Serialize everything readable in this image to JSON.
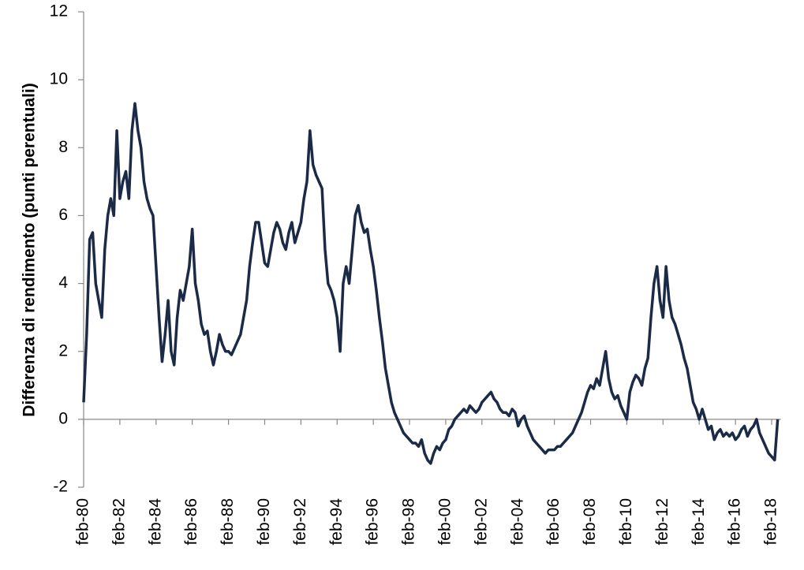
{
  "chart_data": {
    "type": "line",
    "y_label": "Differenza di rendimento (punti perentuali)",
    "color": "#1b2a47",
    "ylim": [
      -2,
      12
    ],
    "yticks": [
      -2,
      0,
      2,
      4,
      6,
      8,
      10,
      12
    ],
    "categories": [
      "feb-80",
      null,
      null,
      null,
      null,
      null,
      null,
      null,
      null,
      null,
      null,
      null,
      "feb-82",
      null,
      null,
      null,
      null,
      null,
      null,
      null,
      null,
      null,
      null,
      null,
      "feb-84",
      null,
      null,
      null,
      null,
      null,
      null,
      null,
      null,
      null,
      null,
      null,
      "feb-86",
      null,
      null,
      null,
      null,
      null,
      null,
      null,
      null,
      null,
      null,
      null,
      "feb-88",
      null,
      null,
      null,
      null,
      null,
      null,
      null,
      null,
      null,
      null,
      null,
      "feb-90",
      null,
      null,
      null,
      null,
      null,
      null,
      null,
      null,
      null,
      null,
      null,
      "feb-92",
      null,
      null,
      null,
      null,
      null,
      null,
      null,
      null,
      null,
      null,
      null,
      "feb-94",
      null,
      null,
      null,
      null,
      null,
      null,
      null,
      null,
      null,
      null,
      null,
      "feb-96",
      null,
      null,
      null,
      null,
      null,
      null,
      null,
      null,
      null,
      null,
      null,
      "feb-98",
      null,
      null,
      null,
      null,
      null,
      null,
      null,
      null,
      null,
      null,
      null,
      "feb-00",
      null,
      null,
      null,
      null,
      null,
      null,
      null,
      null,
      null,
      null,
      null,
      "feb-02",
      null,
      null,
      null,
      null,
      null,
      null,
      null,
      null,
      null,
      null,
      null,
      "feb-04",
      null,
      null,
      null,
      null,
      null,
      null,
      null,
      null,
      null,
      null,
      null,
      "feb-06",
      null,
      null,
      null,
      null,
      null,
      null,
      null,
      null,
      null,
      null,
      null,
      "feb-08",
      null,
      null,
      null,
      null,
      null,
      null,
      null,
      null,
      null,
      null,
      null,
      "feb-10",
      null,
      null,
      null,
      null,
      null,
      null,
      null,
      null,
      null,
      null,
      null,
      "feb-12",
      null,
      null,
      null,
      null,
      null,
      null,
      null,
      null,
      null,
      null,
      null,
      "feb-14",
      null,
      null,
      null,
      null,
      null,
      null,
      null,
      null,
      null,
      null,
      null,
      "feb-16",
      null,
      null,
      null,
      null,
      null,
      null,
      null,
      null,
      null,
      null,
      null,
      "feb-18",
      null,
      null
    ],
    "values": [
      0.5,
      2.5,
      5.3,
      5.5,
      4.0,
      3.5,
      3.0,
      5.0,
      6.0,
      6.5,
      6.0,
      8.5,
      6.5,
      7.0,
      7.3,
      6.5,
      8.5,
      9.3,
      8.5,
      8.0,
      7.0,
      6.5,
      6.2,
      6.0,
      4.5,
      3.0,
      1.7,
      2.5,
      3.5,
      2.0,
      1.6,
      3.0,
      3.8,
      3.5,
      4.0,
      4.5,
      5.6,
      4.0,
      3.5,
      2.8,
      2.5,
      2.6,
      2.0,
      1.6,
      2.0,
      2.5,
      2.2,
      2.0,
      2.0,
      1.9,
      2.1,
      2.3,
      2.5,
      3.0,
      3.5,
      4.5,
      5.2,
      5.8,
      5.8,
      5.2,
      4.6,
      4.5,
      5.0,
      5.5,
      5.8,
      5.6,
      5.2,
      5.0,
      5.5,
      5.8,
      5.2,
      5.5,
      5.8,
      6.5,
      7.0,
      8.5,
      7.5,
      7.2,
      7.0,
      6.8,
      5.0,
      4.0,
      3.8,
      3.5,
      3.0,
      2.0,
      4.0,
      4.5,
      4.0,
      5.0,
      6.0,
      6.3,
      5.8,
      5.5,
      5.6,
      5.0,
      4.5,
      3.8,
      3.0,
      2.3,
      1.5,
      1.0,
      0.5,
      0.2,
      0.0,
      -0.2,
      -0.4,
      -0.5,
      -0.6,
      -0.7,
      -0.7,
      -0.8,
      -0.6,
      -1.0,
      -1.2,
      -1.3,
      -1.0,
      -0.8,
      -0.9,
      -0.7,
      -0.6,
      -0.3,
      -0.2,
      0.0,
      0.1,
      0.2,
      0.3,
      0.2,
      0.4,
      0.3,
      0.2,
      0.3,
      0.5,
      0.6,
      0.7,
      0.8,
      0.6,
      0.5,
      0.3,
      0.2,
      0.2,
      0.1,
      0.3,
      0.2,
      -0.2,
      0.0,
      0.1,
      -0.2,
      -0.4,
      -0.6,
      -0.7,
      -0.8,
      -0.9,
      -1.0,
      -0.9,
      -0.9,
      -0.9,
      -0.8,
      -0.8,
      -0.7,
      -0.6,
      -0.5,
      -0.4,
      -0.2,
      0.0,
      0.2,
      0.5,
      0.8,
      1.0,
      0.9,
      1.2,
      1.0,
      1.5,
      2.0,
      1.2,
      0.8,
      0.6,
      0.7,
      0.4,
      0.2,
      0.0,
      0.8,
      1.1,
      1.3,
      1.2,
      1.0,
      1.5,
      1.8,
      3.0,
      4.0,
      4.5,
      3.5,
      3.0,
      4.5,
      3.5,
      3.0,
      2.8,
      2.5,
      2.2,
      1.8,
      1.5,
      1.0,
      0.5,
      0.3,
      0.0,
      0.3,
      0.0,
      -0.3,
      -0.2,
      -0.6,
      -0.4,
      -0.3,
      -0.5,
      -0.4,
      -0.5,
      -0.4,
      -0.6,
      -0.5,
      -0.3,
      -0.2,
      -0.5,
      -0.3,
      -0.2,
      0.0,
      -0.4,
      -0.6,
      -0.8,
      -1.0,
      -1.1,
      -1.2,
      0.0
    ]
  }
}
